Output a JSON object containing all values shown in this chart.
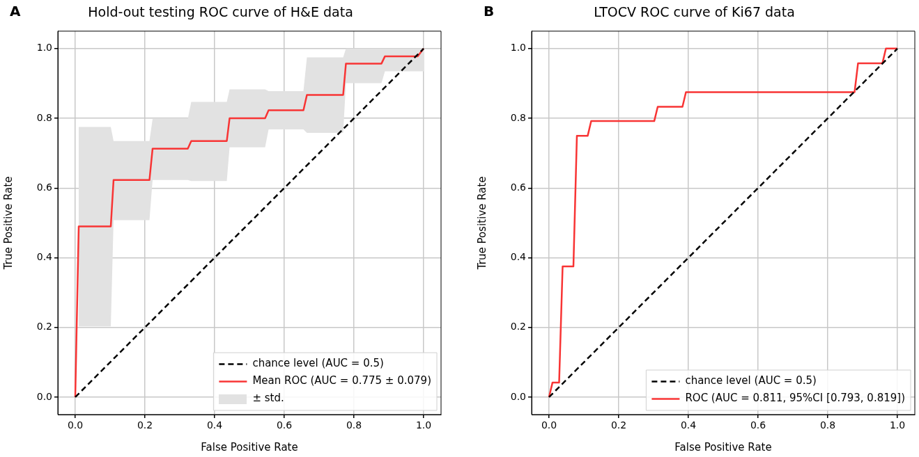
{
  "chart_data": [
    {
      "type": "line",
      "title": "Hold-out testing ROC curve of H&E data",
      "xlabel": "False Positive Rate",
      "ylabel": "True Positive Rate",
      "annotations": [
        "A",
        "± std."
      ],
      "xlim": [
        -0.05,
        1.05
      ],
      "ylim": [
        -0.05,
        1.05
      ],
      "xticks": [
        {
          "value": 0,
          "label": "0.0"
        },
        {
          "value": 0.2,
          "label": "0.2"
        },
        {
          "value": 0.4,
          "label": "0.4"
        },
        {
          "value": 0.6,
          "label": "0.6"
        },
        {
          "value": 0.8,
          "label": "0.8"
        },
        {
          "value": 1,
          "label": "1.0"
        }
      ],
      "yticks": [
        {
          "value": 0,
          "label": "0.0"
        },
        {
          "value": 0.2,
          "label": "0.2"
        },
        {
          "value": 0.4,
          "label": "0.4"
        },
        {
          "value": 0.6,
          "label": "0.6"
        },
        {
          "value": 0.8,
          "label": "0.8"
        },
        {
          "value": 1,
          "label": "1.0"
        }
      ],
      "grid": true,
      "legend": "bottom right",
      "series": [
        {
          "name": "chance level (AUC = 0.5)",
          "line_style": "dashed",
          "color": "#000000",
          "x": [
            0,
            1
          ],
          "values": [
            0,
            1
          ]
        },
        {
          "name": "Mean ROC (AUC = 0.775 ± 0.079)",
          "color": "#f83434",
          "x": [
            0,
            0.01,
            0.102,
            0.11,
            0.213,
            0.222,
            0.323,
            0.333,
            0.435,
            0.443,
            0.545,
            0.555,
            0.655,
            0.665,
            0.769,
            0.777,
            0.879,
            0.889,
            0.983,
            1.0
          ],
          "values": [
            0,
            0.49,
            0.49,
            0.623,
            0.623,
            0.713,
            0.713,
            0.735,
            0.735,
            0.8,
            0.8,
            0.823,
            0.823,
            0.867,
            0.867,
            0.957,
            0.957,
            0.978,
            0.978,
            1.0
          ],
          "upper": [
            null,
            0.775,
            0.775,
            0.735,
            0.735,
            0.798,
            0.798,
            0.847,
            0.847,
            0.883,
            0.883,
            0.878,
            0.878,
            0.975,
            0.975,
            1.0,
            1.0,
            1.0,
            1.0,
            1.0
          ],
          "lower": [
            null,
            0.203,
            0.203,
            0.508,
            0.508,
            0.623,
            0.623,
            0.62,
            0.62,
            0.717,
            0.717,
            0.768,
            0.768,
            0.758,
            0.758,
            0.901,
            0.901,
            0.935,
            0.935,
            0.935
          ]
        }
      ]
    },
    {
      "type": "line",
      "title": "LTOCV ROC curve of Ki67 data",
      "xlabel": "False Positive Rate",
      "ylabel": "True Positive Rate",
      "annotations": [
        "B"
      ],
      "xlim": [
        -0.05,
        1.05
      ],
      "ylim": [
        -0.05,
        1.05
      ],
      "xticks": [
        {
          "value": 0,
          "label": "0.0"
        },
        {
          "value": 0.2,
          "label": "0.2"
        },
        {
          "value": 0.4,
          "label": "0.4"
        },
        {
          "value": 0.6,
          "label": "0.6"
        },
        {
          "value": 0.8,
          "label": "0.8"
        },
        {
          "value": 1,
          "label": "1.0"
        }
      ],
      "yticks": [
        {
          "value": 0,
          "label": "0.0"
        },
        {
          "value": 0.2,
          "label": "0.2"
        },
        {
          "value": 0.4,
          "label": "0.4"
        },
        {
          "value": 0.6,
          "label": "0.6"
        },
        {
          "value": 0.8,
          "label": "0.8"
        },
        {
          "value": 1,
          "label": "1.0"
        }
      ],
      "grid": true,
      "legend": "bottom right",
      "series": [
        {
          "name": "chance level (AUC = 0.5)",
          "line_style": "dashed",
          "color": "#000000",
          "x": [
            0,
            1
          ],
          "values": [
            0,
            1
          ]
        },
        {
          "name": "ROC (AUC = 0.811, 95%CI [0.793, 0.819])",
          "color": "#f83434",
          "x": [
            0,
            0.01,
            0.029,
            0.039,
            0.07,
            0.08,
            0.111,
            0.121,
            0.302,
            0.312,
            0.383,
            0.393,
            0.877,
            0.887,
            0.957,
            0.967,
            1.0
          ],
          "values": [
            0,
            0.042,
            0.042,
            0.375,
            0.375,
            0.75,
            0.75,
            0.792,
            0.792,
            0.833,
            0.833,
            0.875,
            0.875,
            0.958,
            0.958,
            1.0,
            1.0
          ]
        }
      ]
    }
  ]
}
